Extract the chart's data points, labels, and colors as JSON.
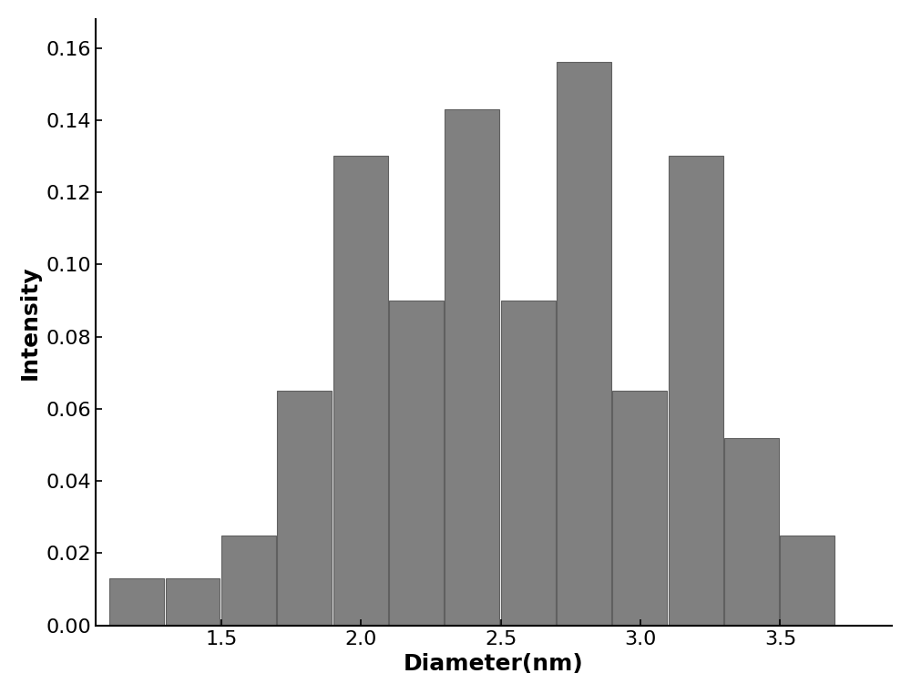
{
  "bar_left_edges": [
    1.1,
    1.3,
    1.5,
    1.7,
    1.9,
    2.1,
    2.3,
    2.5,
    2.7,
    2.9,
    3.1,
    3.3,
    3.5,
    3.7
  ],
  "bar_heights": [
    0.013,
    0.013,
    0.025,
    0.065,
    0.13,
    0.09,
    0.143,
    0.09,
    0.156,
    0.065,
    0.13,
    0.052,
    0.025,
    0.0
  ],
  "bar_width": 0.195,
  "bar_color": "#808080",
  "bar_edgecolor": "#606060",
  "xlabel": "Diameter(nm)",
  "ylabel": "Intensity",
  "xlim": [
    1.05,
    3.9
  ],
  "ylim": [
    0.0,
    0.168
  ],
  "xticks": [
    1.5,
    2.0,
    2.5,
    3.0,
    3.5
  ],
  "yticks": [
    0.0,
    0.02,
    0.04,
    0.06,
    0.08,
    0.1,
    0.12,
    0.14,
    0.16
  ],
  "xlabel_fontsize": 18,
  "ylabel_fontsize": 18,
  "tick_fontsize": 16,
  "background_color": "#ffffff"
}
